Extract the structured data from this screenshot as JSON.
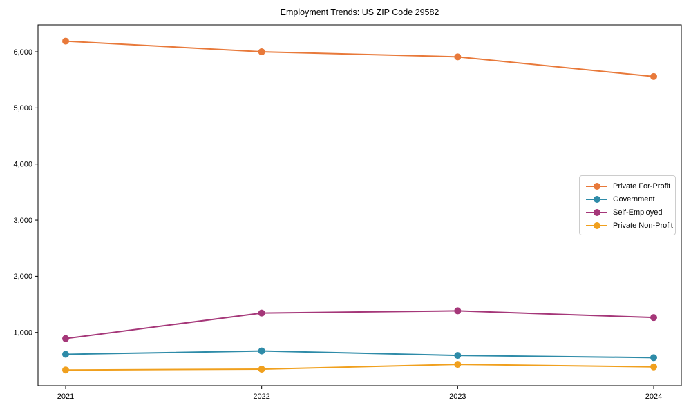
{
  "title": "Employment Trends: US ZIP Code 29582",
  "chart_data": {
    "type": "line",
    "title": "Employment Trends: US ZIP Code 29582",
    "x": [
      "2021",
      "2022",
      "2023",
      "2024"
    ],
    "series": [
      {
        "name": "Private For-Profit",
        "color": "#E8793A",
        "values": [
          6190,
          6000,
          5910,
          5560
        ]
      },
      {
        "name": "Government",
        "color": "#2E8BA8",
        "values": [
          610,
          670,
          590,
          550
        ]
      },
      {
        "name": "Self-Employed",
        "color": "#A53779",
        "values": [
          890,
          1345,
          1385,
          1265
        ]
      },
      {
        "name": "Private Non-Profit",
        "color": "#F0A01E",
        "values": [
          330,
          345,
          430,
          385
        ]
      }
    ],
    "xlabel": "",
    "ylabel": "",
    "ylim": [
      50,
      6480
    ],
    "yticks": [
      1000,
      2000,
      3000,
      4000,
      5000,
      6000
    ],
    "grid": false,
    "legend_position": "center-right",
    "marker": "circle",
    "axis_color": "#000000"
  }
}
